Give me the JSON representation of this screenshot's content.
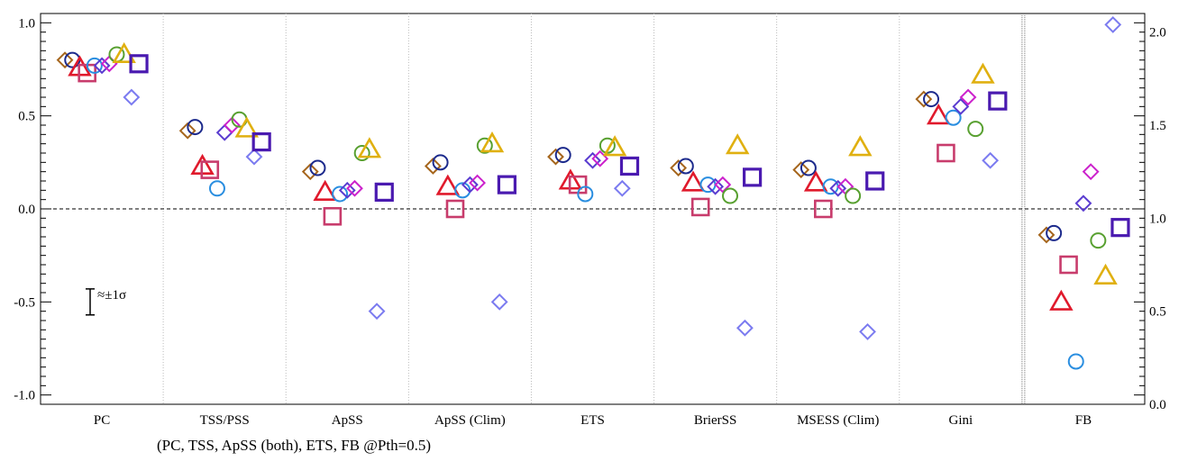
{
  "chart_data": {
    "type": "scatter",
    "title": "",
    "xlabel": "",
    "ylabel": "",
    "categories": [
      "PC",
      "TSS/PSS",
      "ApSS",
      "ApSS (Clim)",
      "ETS",
      "BrierSS",
      "MSESS (Clim)",
      "Gini",
      "FB"
    ],
    "ylim": [
      -1.05,
      1.05
    ],
    "y_ticks": [
      "1.0",
      "0.5",
      "0.0",
      "-0.5",
      "-1.0"
    ],
    "y2lim": [
      0.0,
      2.1
    ],
    "y2_ticks": [
      "2.0",
      "1.5",
      "1.0",
      "0.5",
      "0.0"
    ],
    "reference_line": 0.0,
    "grid": "vertical dotted separators between categories",
    "footnote": "(PC, TSS, ApSS (both), ETS, FB  @Pth=0.5)",
    "error_bar_label": "≈±1σ",
    "error_bar_sigma": 0.07,
    "series": [
      {
        "marker": "diamond",
        "color": "#a5651c",
        "size": "small",
        "values": [
          0.8,
          0.42,
          0.2,
          0.23,
          0.28,
          0.22,
          0.21,
          0.59,
          -0.14
        ]
      },
      {
        "marker": "circle",
        "color": "#1c2a8c",
        "size": "small",
        "values": [
          0.8,
          0.44,
          0.22,
          0.25,
          0.29,
          0.23,
          0.22,
          0.59,
          -0.13
        ]
      },
      {
        "marker": "triangle",
        "color": "#e01a2c",
        "size": "medium",
        "values": [
          0.76,
          0.23,
          0.09,
          0.12,
          0.15,
          0.14,
          0.14,
          0.5,
          -0.5
        ]
      },
      {
        "marker": "square",
        "color": "#c83c6c",
        "size": "medium",
        "values": [
          0.73,
          0.21,
          -0.04,
          0.0,
          0.13,
          0.01,
          0.0,
          0.3,
          -0.3
        ]
      },
      {
        "marker": "circle",
        "color": "#2a8ee0",
        "size": "small",
        "values": [
          0.77,
          0.11,
          0.08,
          0.1,
          0.08,
          0.13,
          0.12,
          0.49,
          -0.82
        ]
      },
      {
        "marker": "diamond",
        "color": "#5a3cd0",
        "size": "small",
        "values": [
          0.77,
          0.41,
          0.1,
          0.13,
          0.26,
          0.12,
          0.11,
          0.55,
          0.03
        ]
      },
      {
        "marker": "diamond",
        "color": "#cc22cc",
        "size": "small",
        "values": [
          0.78,
          0.45,
          0.11,
          0.14,
          0.27,
          0.13,
          0.12,
          0.6,
          0.2
        ]
      },
      {
        "marker": "circle",
        "color": "#58a030",
        "size": "small",
        "values": [
          0.83,
          0.48,
          0.3,
          0.34,
          0.34,
          0.07,
          0.07,
          0.43,
          -0.17
        ]
      },
      {
        "marker": "triangle",
        "color": "#e0b010",
        "size": "medium",
        "values": [
          0.83,
          0.43,
          0.32,
          0.35,
          0.33,
          0.34,
          0.33,
          0.72,
          -0.36
        ]
      },
      {
        "marker": "diamond",
        "color": "#7b7bf0",
        "size": "small",
        "values": [
          0.6,
          0.28,
          -0.55,
          -0.5,
          0.11,
          -0.64,
          -0.66,
          0.26,
          0.99
        ]
      },
      {
        "marker": "square",
        "color": "#4a1ab0",
        "size": "large",
        "values": [
          0.78,
          0.36,
          0.09,
          0.13,
          0.23,
          0.17,
          0.15,
          0.58,
          -0.1
        ]
      }
    ]
  }
}
